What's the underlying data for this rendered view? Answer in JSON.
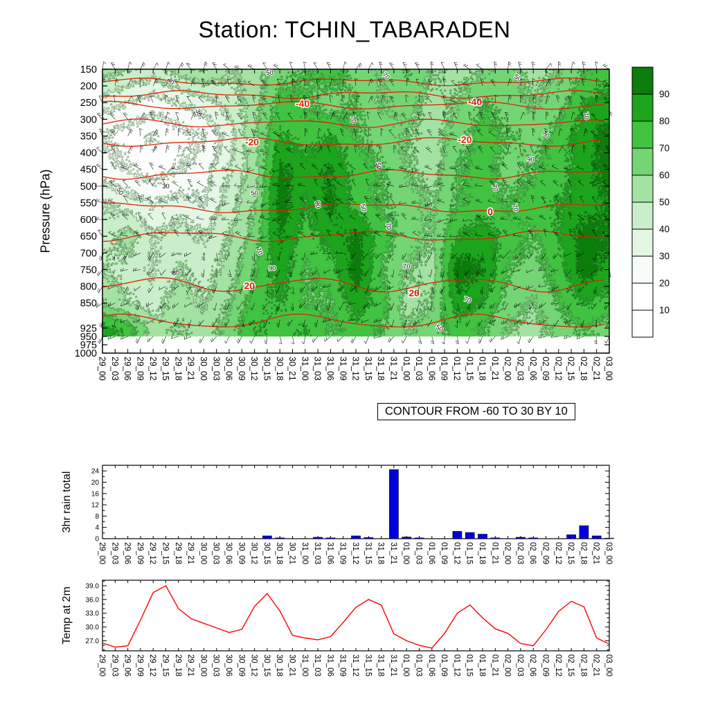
{
  "title": "Station: TCHIN_TABARADEN",
  "colors": {
    "rain_bar": "#0000dd",
    "temp_line": "#ff0000",
    "temperature_contour": "#dd2200",
    "frame": "#000000",
    "wind_barb": "#000000"
  },
  "time_labels": [
    "29_00",
    "29_03",
    "29_06",
    "29_09",
    "29_12",
    "29_15",
    "29_18",
    "29_21",
    "30_00",
    "30_03",
    "30_06",
    "30_09",
    "30_12",
    "30_15",
    "30_18",
    "30_21",
    "31_00",
    "31_03",
    "31_06",
    "31_09",
    "31_12",
    "31_15",
    "31_18",
    "31_21",
    "01_00",
    "01_03",
    "01_06",
    "01_09",
    "01_12",
    "01_15",
    "01_18",
    "01_21",
    "02_00",
    "02_03",
    "02_06",
    "02_09",
    "02_12",
    "02_15",
    "02_18",
    "02_21",
    "03_00"
  ],
  "chart_data": [
    {
      "type": "heatmap",
      "name": "relative-humidity pressure-time cross-section with temperature contours and wind barbs",
      "ylabel": "Pressure (hPa)",
      "pressure_ticks": [
        150,
        200,
        250,
        300,
        350,
        400,
        450,
        500,
        550,
        600,
        650,
        700,
        750,
        800,
        850,
        925,
        950,
        975,
        1000
      ],
      "ylim": [
        1000,
        150
      ],
      "fill_bottom_hpa": 950,
      "colorbar": {
        "labels": [
          "90",
          "80",
          "70",
          "60",
          "50",
          "40",
          "30",
          "20",
          "10"
        ],
        "palette": [
          "#ffffff",
          "#ffffff",
          "#f8fcf8",
          "#e4f6e4",
          "#c9eec9",
          "#a3e2a3",
          "#74d574",
          "#41c341",
          "#1ca51c",
          "#0a7d0a"
        ]
      },
      "humidity_grid": {
        "times": [
          "29_00",
          "29_06",
          "29_12",
          "29_18",
          "30_00",
          "30_06",
          "30_12",
          "30_18",
          "31_00",
          "31_06",
          "31_12",
          "31_18",
          "01_00",
          "01_06",
          "01_12",
          "01_18",
          "02_00",
          "02_06",
          "02_12",
          "02_18",
          "03_00"
        ],
        "pressures": [
          150,
          250,
          350,
          450,
          550,
          650,
          750,
          850,
          925
        ],
        "values": [
          [
            55,
            50,
            45,
            55,
            60,
            50,
            55,
            65,
            70,
            75,
            65,
            60,
            70,
            60,
            55,
            60,
            65,
            55,
            60,
            70,
            75
          ],
          [
            35,
            30,
            25,
            30,
            35,
            45,
            55,
            75,
            70,
            65,
            70,
            60,
            65,
            55,
            60,
            70,
            65,
            60,
            65,
            80,
            85
          ],
          [
            20,
            15,
            10,
            15,
            20,
            35,
            60,
            80,
            75,
            80,
            70,
            65,
            60,
            55,
            65,
            75,
            70,
            65,
            75,
            85,
            95
          ],
          [
            25,
            20,
            15,
            20,
            25,
            40,
            55,
            92,
            85,
            90,
            75,
            70,
            60,
            55,
            70,
            75,
            65,
            70,
            75,
            85,
            95
          ],
          [
            40,
            35,
            30,
            35,
            30,
            45,
            60,
            95,
            80,
            92,
            75,
            70,
            65,
            60,
            70,
            75,
            70,
            75,
            80,
            85,
            90
          ],
          [
            45,
            55,
            40,
            45,
            40,
            50,
            65,
            90,
            75,
            85,
            92,
            75,
            65,
            60,
            80,
            85,
            75,
            70,
            80,
            95,
            90
          ],
          [
            50,
            45,
            40,
            50,
            45,
            55,
            70,
            85,
            70,
            75,
            95,
            70,
            60,
            55,
            95,
            90,
            70,
            65,
            75,
            95,
            85
          ],
          [
            60,
            50,
            45,
            55,
            50,
            60,
            75,
            80,
            70,
            70,
            85,
            75,
            55,
            60,
            85,
            80,
            65,
            60,
            70,
            80,
            75
          ],
          [
            85,
            75,
            55,
            60,
            55,
            65,
            80,
            75,
            80,
            70,
            75,
            70,
            60,
            65,
            75,
            70,
            60,
            55,
            65,
            70,
            65
          ]
        ]
      },
      "humidity_labels": [
        {
          "text": "50",
          "t": 0.035,
          "p": 515,
          "rot": 60
        },
        {
          "text": "30",
          "t": 0.125,
          "p": 500,
          "rot": 0
        },
        {
          "text": "50",
          "t": 0.145,
          "p": 760,
          "rot": 0
        },
        {
          "text": "50",
          "t": 0.3,
          "p": 520,
          "rot": 0
        },
        {
          "text": "30",
          "t": 0.135,
          "p": 185,
          "rot": 55
        },
        {
          "text": "50",
          "t": 0.33,
          "p": 160,
          "rot": 0
        },
        {
          "text": "30",
          "t": 0.19,
          "p": 280,
          "rot": 70
        },
        {
          "text": "90",
          "t": 0.425,
          "p": 555,
          "rot": 80
        },
        {
          "text": "50",
          "t": 0.515,
          "p": 565,
          "rot": 75
        },
        {
          "text": "70",
          "t": 0.565,
          "p": 620,
          "rot": 80
        },
        {
          "text": "70",
          "t": 0.31,
          "p": 695,
          "rot": 70
        },
        {
          "text": "90",
          "t": 0.335,
          "p": 745,
          "rot": 0
        },
        {
          "text": "70",
          "t": 0.495,
          "p": 300,
          "rot": 80
        },
        {
          "text": "70",
          "t": 0.56,
          "p": 170,
          "rot": 45
        },
        {
          "text": "70",
          "t": 0.775,
          "p": 505,
          "rot": 70
        },
        {
          "text": "70",
          "t": 0.815,
          "p": 565,
          "rot": 75
        },
        {
          "text": "90",
          "t": 0.845,
          "p": 420,
          "rot": 0
        },
        {
          "text": "70",
          "t": 0.875,
          "p": 345,
          "rot": 40
        },
        {
          "text": "50",
          "t": 0.82,
          "p": 175,
          "rot": 30
        },
        {
          "text": "70",
          "t": 0.955,
          "p": 290,
          "rot": 80
        },
        {
          "text": "50",
          "t": 0.545,
          "p": 440,
          "rot": 85
        },
        {
          "text": "70",
          "t": 0.6,
          "p": 740,
          "rot": 0
        },
        {
          "text": "50",
          "t": 0.665,
          "p": 925,
          "rot": 30
        },
        {
          "text": "70",
          "t": 0.72,
          "p": 840,
          "rot": 20
        }
      ],
      "temperature_contours": {
        "caption": "CONTOUR FROM -60 TO 30 BY 10",
        "levels": [
          {
            "level": -60,
            "pressure": 188
          },
          {
            "level": -50,
            "pressure": 226
          },
          {
            "level": -40,
            "pressure": 258
          },
          {
            "level": -30,
            "pressure": 312
          },
          {
            "level": -20,
            "pressure": 368
          },
          {
            "level": -10,
            "pressure": 465
          },
          {
            "level": 0,
            "pressure": 565
          },
          {
            "level": 10,
            "pressure": 650
          },
          {
            "level": 20,
            "pressure": 795
          },
          {
            "level": 30,
            "pressure": 905
          }
        ],
        "visible_labels": [
          {
            "text": "-40",
            "t": 0.395,
            "pressure": 255
          },
          {
            "text": "-40",
            "t": 0.735,
            "pressure": 250
          },
          {
            "text": "-20",
            "t": 0.295,
            "pressure": 370
          },
          {
            "text": "-20",
            "t": 0.715,
            "pressure": 362
          },
          {
            "text": "0",
            "t": 0.765,
            "pressure": 578
          },
          {
            "text": "20",
            "t": 0.29,
            "pressure": 800
          },
          {
            "text": "20",
            "t": 0.615,
            "pressure": 822
          }
        ]
      },
      "wind_barbs": {
        "style": "thin black staffs with flags",
        "grid": "3-hourly by 50 hPa, 150-950 hPa"
      }
    },
    {
      "type": "bar",
      "name": "3hr rain total",
      "ylabel": "3hr rain total",
      "yticks": [
        0,
        4,
        8,
        12,
        16,
        20,
        24
      ],
      "ylim": [
        0,
        26
      ],
      "values": [
        0,
        0,
        0,
        0,
        0,
        0,
        0,
        0,
        0,
        0,
        0,
        0,
        0,
        1.0,
        0.3,
        0,
        0,
        0.5,
        0.3,
        0,
        1.0,
        0.4,
        0,
        24.5,
        0.6,
        0.3,
        0,
        0,
        2.6,
        2.2,
        1.6,
        0.3,
        0,
        0.5,
        0.3,
        0,
        0,
        1.4,
        4.6,
        1.0,
        0.2
      ]
    },
    {
      "type": "line",
      "name": "Temp at 2m",
      "ylabel": "Temp at 2m",
      "yticks": [
        27,
        30,
        33,
        36,
        39
      ],
      "ytick_labels": [
        "27.0",
        "30.0",
        "33.0",
        "36.0",
        "39.0"
      ],
      "ylim": [
        24.8,
        40.2
      ],
      "values": [
        26.5,
        25.6,
        25.9,
        31.5,
        37.5,
        39.0,
        34.0,
        31.8,
        30.8,
        29.8,
        28.8,
        29.5,
        34.5,
        37.3,
        33.5,
        28.2,
        27.6,
        27.2,
        27.9,
        31.0,
        34.3,
        36.0,
        34.8,
        28.5,
        27.0,
        26.0,
        25.4,
        28.6,
        33.0,
        34.8,
        32.0,
        29.6,
        28.6,
        26.4,
        25.9,
        29.4,
        33.4,
        35.6,
        34.4,
        27.6,
        26.3
      ]
    }
  ]
}
